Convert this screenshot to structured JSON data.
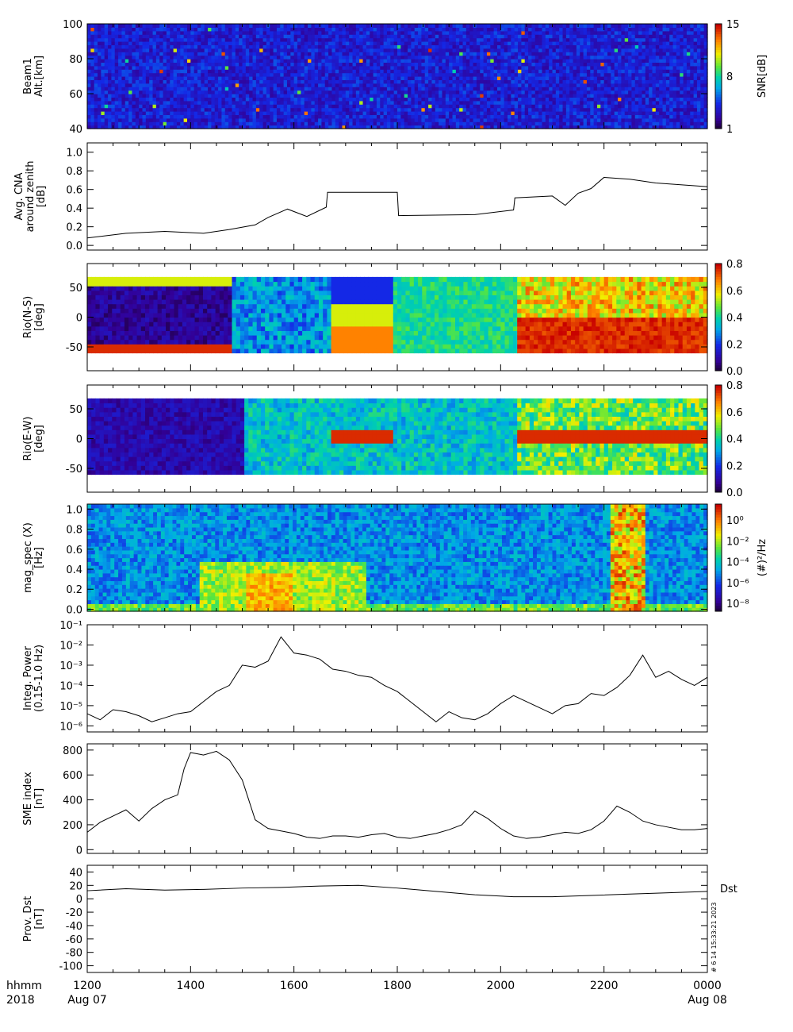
{
  "chart_data": [
    {
      "type": "heatmap",
      "ylabel_lines": [
        "Beam1",
        "Alt.[km]"
      ],
      "ylim": [
        40,
        100
      ],
      "yticks": [
        40,
        60,
        80,
        100
      ],
      "colorbar": {
        "label": "SNR[dB]",
        "ticks": [
          "1",
          "8",
          "15"
        ],
        "range": [
          1,
          15
        ]
      }
    },
    {
      "type": "line",
      "ylabel_lines": [
        "Avg. CNA",
        "around zenith",
        "[dB]"
      ],
      "ylim": [
        -0.05,
        1.1
      ],
      "yticks": [
        "0.0",
        "0.2",
        "0.4",
        "0.6",
        "0.8",
        "1.0"
      ],
      "x": [
        0,
        30,
        60,
        90,
        110,
        130,
        140,
        155,
        170,
        185,
        186,
        240,
        241,
        300,
        330,
        331,
        360,
        370,
        380,
        390,
        400,
        420,
        440,
        480
      ],
      "y": [
        0.08,
        0.13,
        0.15,
        0.13,
        0.17,
        0.22,
        0.3,
        0.39,
        0.31,
        0.41,
        0.57,
        0.57,
        0.32,
        0.33,
        0.38,
        0.51,
        0.53,
        0.43,
        0.56,
        0.61,
        0.73,
        0.71,
        0.67,
        0.63
      ]
    },
    {
      "type": "heatmap",
      "ylabel_lines": [
        "Rio(N-S)",
        "[deg]"
      ],
      "ylim": [
        -90,
        90
      ],
      "yticks": [
        -50,
        0,
        50
      ],
      "colorbar": {
        "ticks": [
          "0.0",
          "0.2",
          "0.4",
          "0.6",
          "0.8"
        ],
        "range": [
          0,
          0.85
        ]
      }
    },
    {
      "type": "heatmap",
      "ylabel_lines": [
        "Rio(E-W)",
        "[deg]"
      ],
      "ylim": [
        -90,
        90
      ],
      "yticks": [
        -50,
        0,
        50
      ],
      "colorbar": {
        "ticks": [
          "0.0",
          "0.2",
          "0.4",
          "0.6",
          "0.8"
        ],
        "range": [
          0,
          0.85
        ]
      }
    },
    {
      "type": "heatmap",
      "ylabel_lines": [
        "mag_spec (X)",
        "[Hz]"
      ],
      "ylim": [
        -0.02,
        1.05
      ],
      "yticks": [
        "0.0",
        "0.2",
        "0.4",
        "0.6",
        "0.8",
        "1.0"
      ],
      "colorbar": {
        "label": "(#)²/Hz",
        "ticks": [
          "10⁰",
          "10⁻²",
          "10⁻⁴",
          "10⁻⁶",
          "10⁻⁸"
        ]
      }
    },
    {
      "type": "line",
      "ylabel_lines": [
        "Integ. Power",
        "(0.15-1.0 Hz)"
      ],
      "yscale": "log",
      "ylim": [
        -6.3,
        -1
      ],
      "yticks": [
        "10⁻¹",
        "10⁻²",
        "10⁻³",
        "10⁻⁴",
        "10⁻⁵",
        "10⁻⁶"
      ],
      "x": [
        0,
        10,
        20,
        30,
        40,
        50,
        60,
        70,
        80,
        90,
        100,
        110,
        120,
        130,
        140,
        150,
        160,
        170,
        180,
        190,
        200,
        210,
        220,
        230,
        240,
        250,
        260,
        270,
        280,
        290,
        300,
        310,
        320,
        330,
        340,
        350,
        360,
        370,
        380,
        390,
        400,
        410,
        420,
        430,
        440,
        450,
        460,
        470,
        480
      ],
      "y": [
        -5.4,
        -5.7,
        -5.2,
        -5.3,
        -5.5,
        -5.8,
        -5.6,
        -5.4,
        -5.3,
        -4.8,
        -4.3,
        -4.0,
        -3.0,
        -3.1,
        -2.8,
        -1.6,
        -2.4,
        -2.5,
        -2.7,
        -3.2,
        -3.3,
        -3.5,
        -3.6,
        -4.0,
        -4.3,
        -4.8,
        -5.3,
        -5.8,
        -5.3,
        -5.6,
        -5.7,
        -5.4,
        -4.9,
        -4.5,
        -4.8,
        -5.1,
        -5.4,
        -5.0,
        -4.9,
        -4.4,
        -4.5,
        -4.1,
        -3.5,
        -2.5,
        -3.6,
        -3.3,
        -3.7,
        -4.0,
        -3.6
      ]
    },
    {
      "type": "line",
      "ylabel_lines": [
        "SME index",
        "[nT]"
      ],
      "ylim": [
        -30,
        850
      ],
      "yticks": [
        0,
        200,
        400,
        600,
        800
      ],
      "x": [
        0,
        10,
        20,
        30,
        40,
        50,
        60,
        70,
        75,
        80,
        90,
        100,
        110,
        120,
        125,
        130,
        140,
        150,
        160,
        170,
        180,
        190,
        200,
        210,
        220,
        230,
        240,
        250,
        260,
        270,
        280,
        290,
        300,
        310,
        320,
        330,
        340,
        350,
        360,
        370,
        380,
        390,
        400,
        410,
        420,
        430,
        440,
        450,
        460,
        470,
        480
      ],
      "y": [
        140,
        220,
        270,
        320,
        230,
        330,
        400,
        440,
        650,
        780,
        760,
        790,
        720,
        560,
        400,
        240,
        170,
        150,
        130,
        100,
        90,
        110,
        110,
        100,
        120,
        130,
        100,
        90,
        110,
        130,
        160,
        200,
        310,
        250,
        170,
        110,
        90,
        100,
        120,
        140,
        130,
        160,
        230,
        350,
        300,
        230,
        200,
        180,
        160,
        160,
        170
      ]
    },
    {
      "type": "line",
      "ylabel_lines": [
        "Prov. Dst",
        "[nT]"
      ],
      "ylim": [
        -110,
        50
      ],
      "yticks": [
        -100,
        -80,
        -60,
        -40,
        -20,
        0,
        20,
        40
      ],
      "series_label": "Dst",
      "x": [
        0,
        30,
        60,
        90,
        120,
        150,
        180,
        210,
        240,
        270,
        300,
        330,
        360,
        390,
        420,
        450,
        480
      ],
      "y": [
        12,
        15,
        13,
        14,
        16,
        17,
        19,
        20,
        16,
        11,
        6,
        3,
        3,
        5,
        7,
        9,
        11
      ]
    }
  ],
  "x_axis": {
    "xlim": [
      0,
      720
    ],
    "tick_labels": [
      "1200",
      "1400",
      "1600",
      "1800",
      "2000",
      "2200",
      "0000"
    ],
    "row_header_time": "hhmm",
    "row_header_year": "2018",
    "start_date": "Aug 07",
    "end_date": "Aug 08"
  },
  "stamp": "# 6 14 15:33:21 2023"
}
